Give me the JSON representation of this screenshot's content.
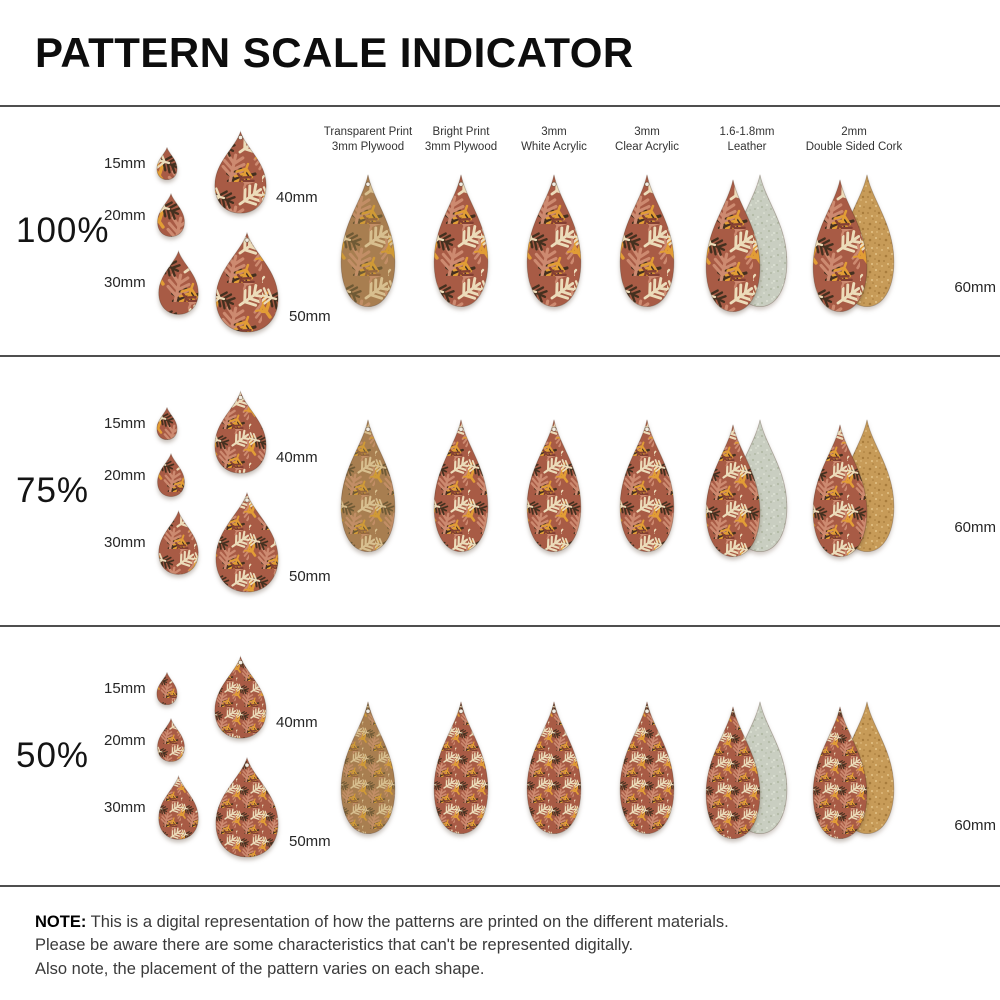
{
  "title": "PATTERN SCALE INDICATOR",
  "rows": [
    {
      "label": "100%",
      "scale": 1
    },
    {
      "label": "75%",
      "scale": 0.75
    },
    {
      "label": "50%",
      "scale": 0.5
    }
  ],
  "materials": [
    {
      "label_line1": "Transparent Print",
      "label_line2": "3mm Plywood",
      "variant": "transparent",
      "backing": null
    },
    {
      "label_line1": "Bright Print",
      "label_line2": "3mm Plywood",
      "variant": "bright",
      "backing": null
    },
    {
      "label_line1": "3mm",
      "label_line2": "White Acrylic",
      "variant": "bright",
      "backing": null
    },
    {
      "label_line1": "3mm",
      "label_line2": "Clear Acrylic",
      "variant": "bright",
      "backing": null
    },
    {
      "label_line1": "1.6-1.8mm",
      "label_line2": "Leather",
      "variant": "bright",
      "backing": "leather"
    },
    {
      "label_line1": "2mm",
      "label_line2": "Double Sided Cork",
      "variant": "bright",
      "backing": "cork"
    }
  ],
  "size_labels": {
    "s15": "15mm",
    "s20": "20mm",
    "s30": "30mm",
    "s40": "40mm",
    "s50": "50mm",
    "s60": "60mm"
  },
  "note": {
    "label": "NOTE:",
    "line1": "This is a digital representation of how the patterns are printed on the different materials.",
    "line2": "Please be aware there are some characteristics that can't be represented digitally.",
    "line3": "Also note, the placement of the pattern varies on each shape."
  },
  "colors": {
    "divider": "#4f4f4f",
    "title_text": "#0d0d0d",
    "label_text": "#262626",
    "hole": "#f2ece2",
    "bright": {
      "bg": "#a85b45",
      "leaf_salmon": "#cd8a70",
      "leaf_mustard": "#e29d35",
      "leaf_cream": "#ecdcba",
      "leaf_dark": "#44301f",
      "leaf_maroon": "#833f32"
    },
    "transparent": {
      "bg": "#a87e50",
      "leaf_salmon": "#c28e66",
      "leaf_mustard": "#d09a36",
      "leaf_cream": "#d8bf8f",
      "leaf_dark": "#6f5a35",
      "leaf_maroon": "#96683f"
    },
    "leather": {
      "bg": "#c9cec1",
      "speck_dark": "#b2b9a5",
      "speck_light": "#e4e8db"
    },
    "cork": {
      "bg": "#c79b58",
      "speck_dark": "#a87c3c",
      "speck_light": "#e4c388"
    }
  }
}
